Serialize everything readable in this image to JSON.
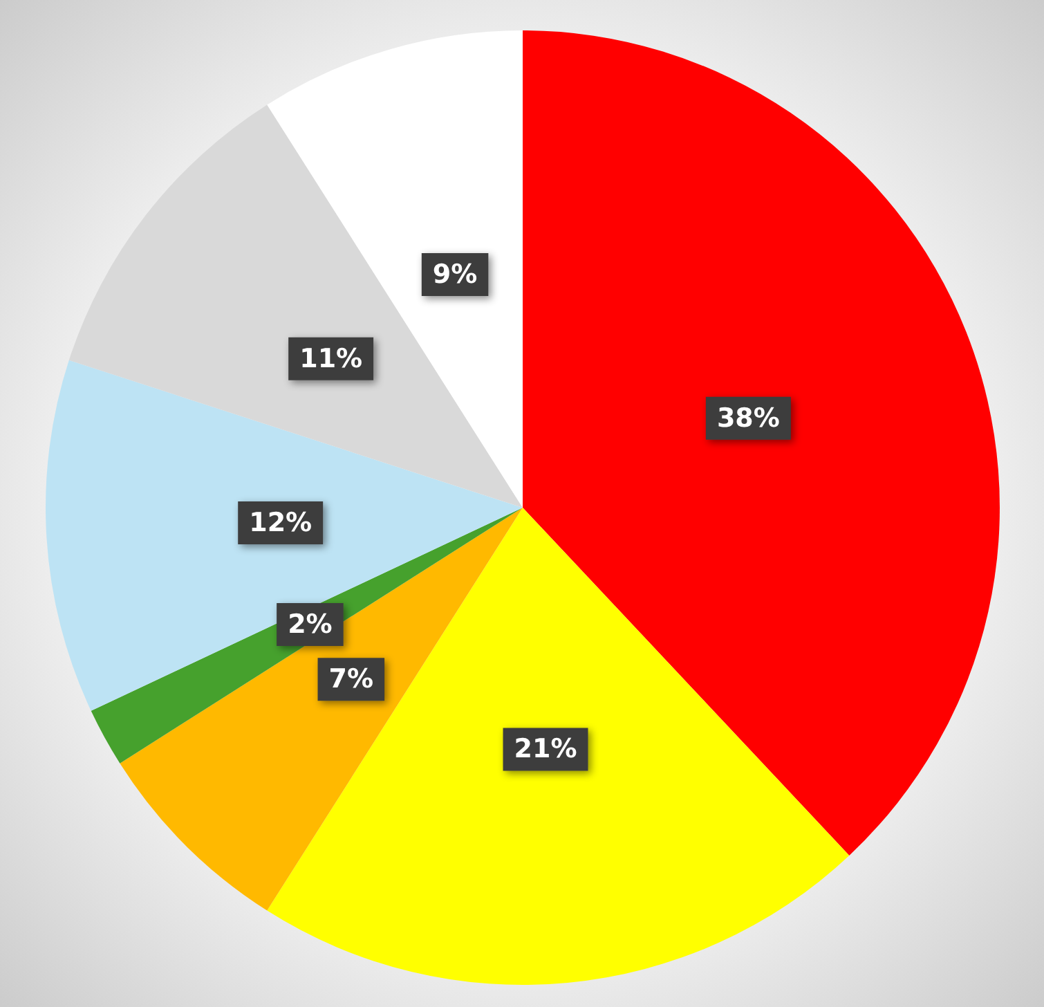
{
  "chart_data": {
    "type": "pie",
    "categories": [
      null,
      null,
      null,
      null,
      null,
      null,
      null
    ],
    "values": [
      38,
      21,
      7,
      2,
      12,
      11,
      9
    ],
    "colors": [
      "#ff0000",
      "#ffff00",
      "#ffb900",
      "#46a12d",
      "#bde3f4",
      "#d9d9d9",
      "#ffffff"
    ],
    "value_labels": [
      "38%",
      "21%",
      "7%",
      "2%",
      "12%",
      "11%",
      "9%"
    ]
  }
}
